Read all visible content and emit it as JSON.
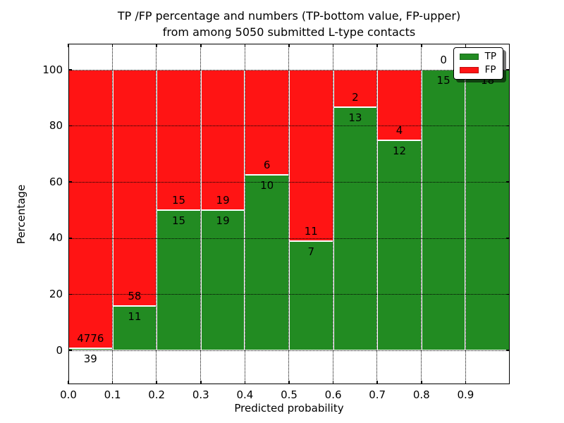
{
  "title": {
    "line1": "TP /FP percentage and numbers (TP-bottom value, FP-upper)",
    "line2": "from among 5050 submitted L-type contacts"
  },
  "chart_data": {
    "type": "bar",
    "stacked": true,
    "title": "TP /FP percentage and numbers (TP-bottom value, FP-upper) from among 5050 submitted L-type contacts",
    "xlabel": "Predicted probability",
    "ylabel": "Percentage",
    "x_tick_labels": [
      "0.0",
      "0.1",
      "0.2",
      "0.3",
      "0.4",
      "0.5",
      "0.6",
      "0.7",
      "0.8",
      "0.9"
    ],
    "y_tick_values": [
      0,
      20,
      40,
      60,
      80,
      100
    ],
    "xlim": [
      0.0,
      1.0
    ],
    "ylim": [
      -12,
      109
    ],
    "bin_width": 0.1,
    "grid": true,
    "legend": {
      "position": "upper right",
      "entries": [
        {
          "label": "TP",
          "color": "#228b22"
        },
        {
          "label": "FP",
          "color": "#ff1414"
        }
      ]
    },
    "colors": {
      "tp": "#228b22",
      "fp": "#ff1414"
    },
    "bins": [
      {
        "x_start": 0.0,
        "tp_count": 39,
        "fp_count": 4776,
        "tp_pct": 0.81
      },
      {
        "x_start": 0.1,
        "tp_count": 11,
        "fp_count": 58,
        "tp_pct": 15.94
      },
      {
        "x_start": 0.2,
        "tp_count": 15,
        "fp_count": 15,
        "tp_pct": 50.0
      },
      {
        "x_start": 0.3,
        "tp_count": 19,
        "fp_count": 19,
        "tp_pct": 50.0
      },
      {
        "x_start": 0.4,
        "tp_count": 10,
        "fp_count": 6,
        "tp_pct": 62.5
      },
      {
        "x_start": 0.5,
        "tp_count": 7,
        "fp_count": 11,
        "tp_pct": 38.89
      },
      {
        "x_start": 0.6,
        "tp_count": 13,
        "fp_count": 2,
        "tp_pct": 86.67
      },
      {
        "x_start": 0.7,
        "tp_count": 12,
        "fp_count": 4,
        "tp_pct": 75.0
      },
      {
        "x_start": 0.8,
        "tp_count": 15,
        "fp_count": 0,
        "tp_pct": 100.0
      },
      {
        "x_start": 0.9,
        "tp_count": 18,
        "fp_count": 0,
        "tp_pct": 100.0
      }
    ]
  }
}
